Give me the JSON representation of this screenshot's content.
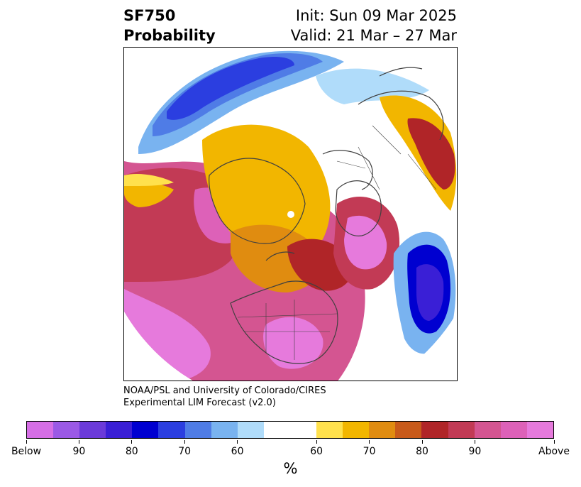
{
  "title": {
    "left_line1": "SF750",
    "left_line2": "Probability",
    "right_line1": "Init: Sun 09 Mar 2025",
    "right_line2": "Valid: 21 Mar – 27 Mar"
  },
  "credit": {
    "line1": "NOAA/PSL and University of Colorado/CIRES",
    "line2": "Experimental LIM Forecast (v2.0)"
  },
  "colorbar": {
    "colors": [
      "#d66ee6",
      "#9b59e6",
      "#6b3ad9",
      "#3a1fd6",
      "#0000d0",
      "#2b3ee0",
      "#4f7ce6",
      "#79b3f0",
      "#b0dcfa",
      "#ffffff",
      "#ffe14d",
      "#f2b600",
      "#e08c10",
      "#c85a1a",
      "#b02528",
      "#c23a55",
      "#d45591",
      "#dd61b8",
      "#e67adc"
    ],
    "tick_labels": [
      "Below",
      "90",
      "80",
      "70",
      "60",
      "60",
      "70",
      "80",
      "90",
      "Above"
    ],
    "units": "%"
  },
  "map": {
    "projection": "north-polar-stereographic",
    "field_colors": {
      "magenta": "#e67adc",
      "pink": "#dd61b8",
      "rose": "#d45591",
      "crimson": "#c23a55",
      "red": "#b02528",
      "rust": "#c85a1a",
      "orange": "#e08c10",
      "gold": "#f2b600",
      "yellow": "#ffe14d",
      "lightblue": "#b0dcfa",
      "skyblue": "#79b3f0",
      "blue": "#4f7ce6",
      "royal": "#2b3ee0",
      "navy": "#0000d0",
      "indigo": "#3a1fd6"
    }
  }
}
